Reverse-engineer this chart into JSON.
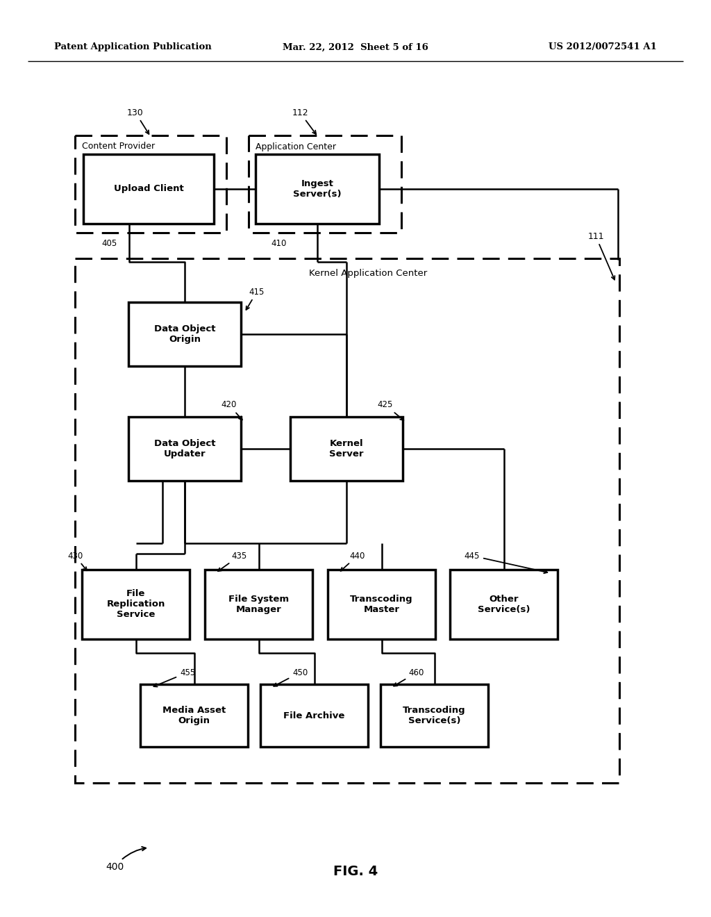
{
  "header_left": "Patent Application Publication",
  "header_mid": "Mar. 22, 2012  Sheet 5 of 16",
  "header_right": "US 2012/0072541 A1",
  "fig_label": "FIG. 4",
  "bg": "#ffffff"
}
